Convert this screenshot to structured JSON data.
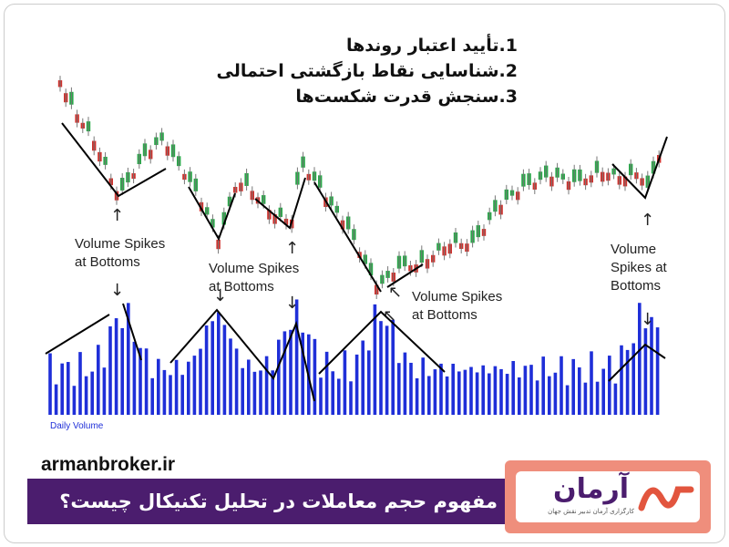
{
  "list": [
    "1.تأیید اعتبار روندها",
    "2.شناسایی نقاط بازگشتی احتمالی",
    "3.سنجش قدرت شکست‌ها"
  ],
  "annotations": [
    [
      "Volume Spikes",
      "at Bottoms"
    ],
    [
      "Volume Spikes",
      "at Bottoms"
    ],
    [
      "Volume Spikes",
      "at Bottoms"
    ],
    [
      "Volume",
      "Spikes at",
      "Bottoms"
    ]
  ],
  "volume_label": "Daily Volume",
  "site": "armanbroker.ir",
  "headline": "مفهوم حجم معاملات در تحلیل تکنیکال چیست؟",
  "logo": {
    "name": "آرمان",
    "tagline": "کارگزاری آرمان تدبیر نقش جهان"
  }
}
